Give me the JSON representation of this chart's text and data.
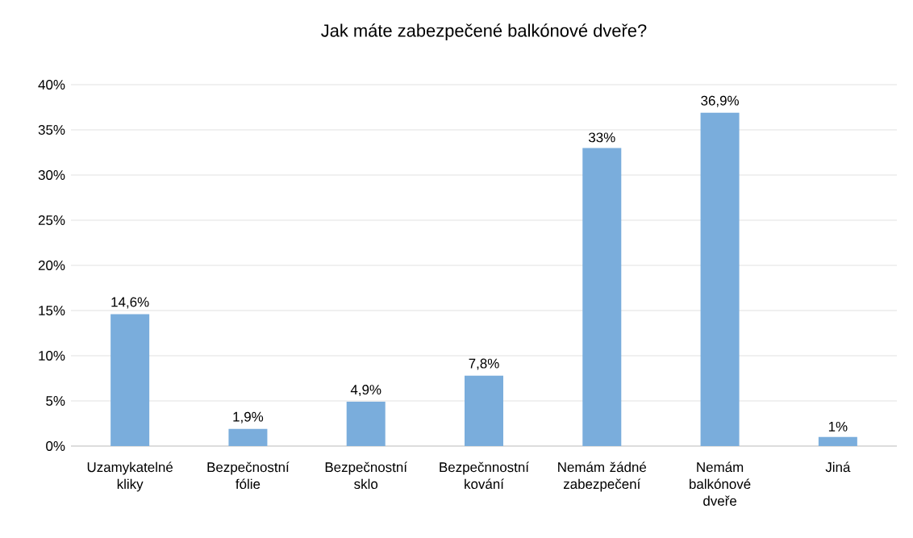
{
  "chart_data": {
    "type": "bar",
    "title": "Jak máte zabezpečené balkónové dveře?",
    "categories": [
      "Uzamykatelné kliky",
      "Bezpečnostní fólie",
      "Bezpečnostní sklo",
      "Bezpečnnostní kování",
      "Nemám žádné zabezpečení",
      "Nemám balkónové dveře",
      "Jiná"
    ],
    "values": [
      14.6,
      1.9,
      4.9,
      7.8,
      33,
      36.9,
      1
    ],
    "value_labels": [
      "14,6%",
      "1,9%",
      "4,9%",
      "7,8%",
      "33%",
      "36,9%",
      "1%"
    ],
    "color": "#7aaddc",
    "ylim": [
      0,
      40
    ],
    "yticks": [
      {
        "value": 0,
        "label": "0%"
      },
      {
        "value": 5,
        "label": "5%"
      },
      {
        "value": 10,
        "label": "10%"
      },
      {
        "value": 15,
        "label": "15%"
      },
      {
        "value": 20,
        "label": "20%"
      },
      {
        "value": 25,
        "label": "25%"
      },
      {
        "value": 30,
        "label": "30%"
      },
      {
        "value": 35,
        "label": "35%"
      },
      {
        "value": 40,
        "label": "40%"
      }
    ],
    "grid": "y"
  }
}
